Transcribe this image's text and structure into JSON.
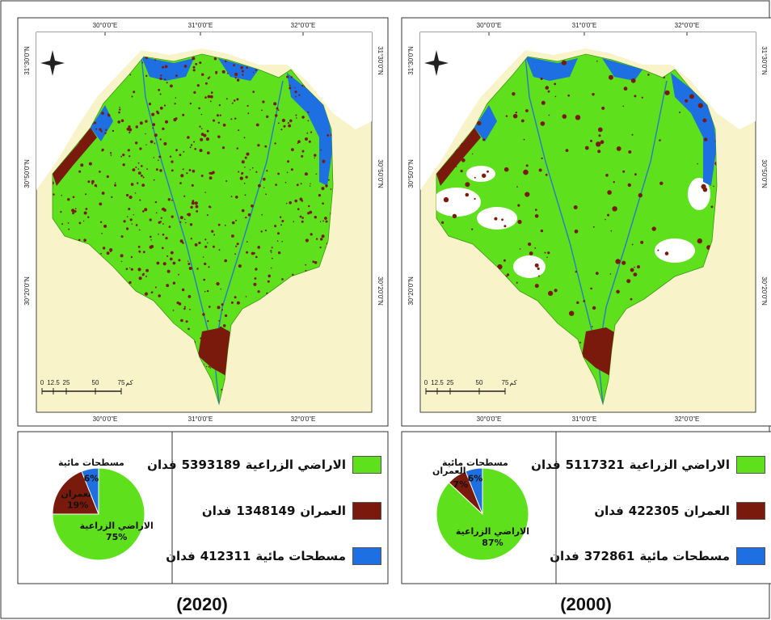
{
  "chart_data": [
    {
      "type": "pie",
      "categories": [
        "الاراضي الزراعية",
        "العمران",
        "مسطحات مائية"
      ],
      "values": [
        75,
        19,
        6
      ],
      "value_labels": [
        "75%",
        "19%",
        "6%"
      ],
      "colors": [
        "#5ee01c",
        "#7a1a0c",
        "#1e6fe2"
      ]
    },
    {
      "type": "pie",
      "categories": [
        "الاراضي الزراعية",
        "العمران",
        "مسطحات مائية"
      ],
      "values": [
        87,
        7,
        6
      ],
      "value_labels": [
        "87%",
        "7%",
        "6%"
      ],
      "colors": [
        "#5ee01c",
        "#7a1a0c",
        "#1e6fe2"
      ]
    }
  ],
  "panels": [
    {
      "year": "(2020)",
      "legend": [
        {
          "label": "الاراضي الزراعية",
          "area": 5393189,
          "unit": "فدان"
        },
        {
          "label": "العمران",
          "area": 1348149,
          "unit": "فدان"
        },
        {
          "label": "مسطحات مائية",
          "area": 412311,
          "unit": "فدان"
        }
      ]
    },
    {
      "year": "(2000)",
      "legend": [
        {
          "label": "الاراضي الزراعية",
          "area": 5117321,
          "unit": "فدان"
        },
        {
          "label": "العمران",
          "area": 422305,
          "unit": "فدان"
        },
        {
          "label": "مسطحات مائية",
          "area": 372861,
          "unit": "فدان"
        }
      ]
    }
  ],
  "map": {
    "lon_labels": [
      "30°0'0\"E",
      "31°0'0\"E",
      "32°0'0\"E"
    ],
    "lat_labels": [
      "31°30'0\"N",
      "30°50'0\"N",
      "30°20'0\"N"
    ],
    "scale_labels": [
      "0",
      "12.5",
      "25",
      "50",
      "75",
      "كم"
    ]
  }
}
